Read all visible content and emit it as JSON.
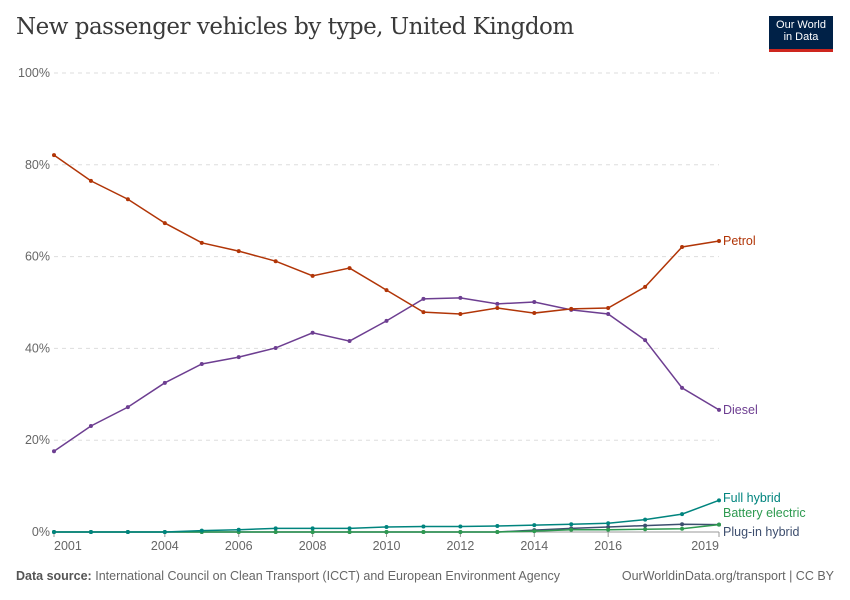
{
  "title": "New passenger vehicles by type, United Kingdom",
  "logo": {
    "line1": "Our World",
    "line2": "in Data"
  },
  "footer": {
    "source_label": "Data source:",
    "source": "International Council on Clean Transport (ICCT) and European Environment Agency",
    "link": "OurWorldinData.org/transport | CC BY"
  },
  "chart_data": {
    "type": "line",
    "x": [
      2001,
      2002,
      2003,
      2004,
      2005,
      2006,
      2007,
      2008,
      2009,
      2010,
      2011,
      2012,
      2013,
      2014,
      2015,
      2016,
      2017,
      2018,
      2019
    ],
    "xlim": [
      2001,
      2019
    ],
    "ylim": [
      0,
      100
    ],
    "yticks": [
      0,
      20,
      40,
      60,
      80,
      100
    ],
    "ytick_labels": [
      "0%",
      "20%",
      "40%",
      "60%",
      "80%",
      "100%"
    ],
    "xticks": [
      2001,
      2004,
      2006,
      2008,
      2010,
      2012,
      2014,
      2016,
      2019
    ],
    "grid": "horizontal dashed",
    "series": [
      {
        "name": "Petrol",
        "color": "#b13507",
        "values": [
          82.1,
          76.5,
          72.5,
          67.3,
          63.0,
          61.2,
          59.0,
          55.8,
          57.5,
          52.7,
          47.9,
          47.5,
          48.8,
          47.7,
          48.6,
          48.8,
          53.4,
          62.1,
          63.4
        ]
      },
      {
        "name": "Diesel",
        "color": "#6d3e91",
        "values": [
          17.6,
          23.1,
          27.2,
          32.5,
          36.6,
          38.1,
          40.1,
          43.4,
          41.6,
          46.0,
          50.8,
          51.0,
          49.7,
          50.1,
          48.4,
          47.5,
          41.8,
          31.4,
          26.6
        ]
      },
      {
        "name": "Full hybrid",
        "color": "#00847e",
        "values": [
          0,
          0,
          0,
          0,
          0.3,
          0.5,
          0.8,
          0.8,
          0.8,
          1.1,
          1.2,
          1.2,
          1.3,
          1.5,
          1.7,
          1.9,
          2.7,
          3.9,
          6.9
        ]
      },
      {
        "name": "Battery electric",
        "color": "#2e9a50",
        "values": [
          0,
          0,
          0,
          0,
          0,
          0,
          0,
          0,
          0,
          0,
          0,
          0,
          0,
          0.2,
          0.5,
          0.5,
          0.6,
          0.7,
          1.6
        ]
      },
      {
        "name": "Plug-in hybrid",
        "color": "#3d4e6e",
        "values": [
          0,
          0,
          0,
          0,
          0,
          0,
          0,
          0,
          0,
          0,
          0,
          0,
          0,
          0.4,
          0.8,
          1.1,
          1.4,
          1.7,
          1.6
        ]
      }
    ]
  }
}
